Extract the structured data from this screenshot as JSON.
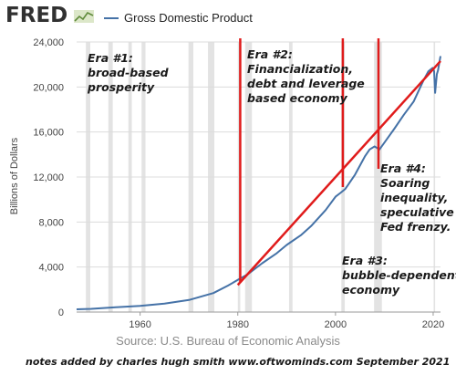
{
  "header": {
    "logo_text": "FRED",
    "legend_label": "Gross Domestic Product",
    "series_color": "#4572a7"
  },
  "source_text": "Source: U.S. Bureau of Economic Analysis",
  "footnote_text": "notes added by charles hugh smith   www.oftwominds.com  September 2021",
  "annotations": {
    "era1": [
      "Era #1:",
      "broad-based",
      "prosperity"
    ],
    "era2": [
      "Era #2:",
      "Financialization,",
      "debt and leverage",
      "based economy"
    ],
    "era3": [
      "Era #3:",
      "bubble-dependent",
      "economy"
    ],
    "era4": [
      "Era #4:",
      "Soaring",
      "inequality,",
      "speculative",
      "Fed frenzy."
    ]
  },
  "overlay": {
    "color": "#e01b1b",
    "vertical_markers_year": [
      1980.5,
      2001.5,
      2008.8
    ],
    "trend_line": {
      "x": [
        1980,
        2021.5
      ],
      "y": [
        2400,
        22300
      ]
    }
  },
  "chart_data": {
    "type": "line",
    "title": "",
    "xlabel": "",
    "ylabel": "Billions of Dollars",
    "xlim": [
      1947,
      2021.5
    ],
    "ylim": [
      0,
      24000
    ],
    "x_ticks": [
      1960,
      1980,
      2000,
      2020
    ],
    "y_ticks": [
      0,
      4000,
      8000,
      12000,
      16000,
      20000,
      24000
    ],
    "y_tick_labels": [
      "0",
      "4,000",
      "8,000",
      "12,000",
      "16,000",
      "20,000",
      "24,000"
    ],
    "shaded_recessions": [
      [
        1948.9,
        1949.8
      ],
      [
        1953.5,
        1954.4
      ],
      [
        1957.6,
        1958.3
      ],
      [
        1960.3,
        1961.1
      ],
      [
        1969.9,
        1970.9
      ],
      [
        1973.9,
        1975.2
      ],
      [
        1980.0,
        1980.5
      ],
      [
        1981.5,
        1982.9
      ],
      [
        1990.5,
        1991.2
      ],
      [
        2001.2,
        2001.9
      ],
      [
        2007.9,
        2009.5
      ],
      [
        2020.1,
        2020.4
      ]
    ],
    "series": [
      {
        "name": "Gross Domestic Product",
        "x": [
          1947,
          1950,
          1955,
          1960,
          1965,
          1970,
          1975,
          1978,
          1980,
          1982,
          1985,
          1988,
          1990,
          1993,
          1995,
          1998,
          2000,
          2001,
          2002,
          2004,
          2006,
          2007,
          2008,
          2009,
          2010,
          2012,
          2014,
          2016,
          2018,
          2019,
          2019.9,
          2020.2,
          2020.4,
          2020.75,
          2021,
          2021.5
        ],
        "y": [
          243,
          280,
          426,
          543,
          743,
          1073,
          1685,
          2352,
          2857,
          3344,
          4339,
          5236,
          5963,
          6858,
          7640,
          9063,
          10252,
          10582,
          10936,
          12213,
          13815,
          14452,
          14713,
          14449,
          15049,
          16254,
          17527,
          18695,
          20580,
          21381,
          21700,
          21400,
          19477,
          21138,
          21477,
          22741
        ]
      }
    ]
  }
}
